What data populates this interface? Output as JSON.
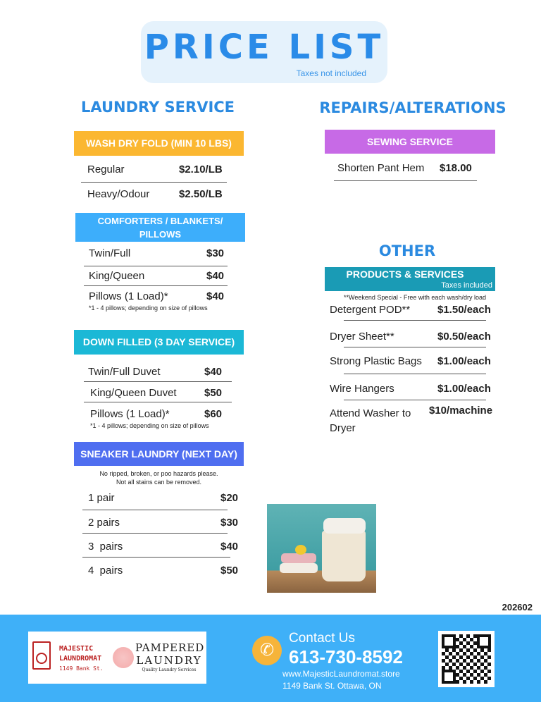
{
  "title": "PRICE LIST",
  "taxes_note": "Taxes not included",
  "laundry": {
    "heading": "LAUNDRY SERVICE",
    "wash": {
      "header": "WASH DRY FOLD (MIN 10 LBS)",
      "color": "#fbb731",
      "items": [
        {
          "name": "Regular",
          "price": "$2.10/LB"
        },
        {
          "name": "Heavy/Odour",
          "price": "$2.50/LB"
        }
      ]
    },
    "comforters": {
      "header": "COMFORTERS / BLANKETS/ PILLOWS",
      "color": "#3daefb",
      "items": [
        {
          "name": "Twin/Full",
          "price": "$30"
        },
        {
          "name": "King/Queen",
          "price": "$40"
        },
        {
          "name": "Pillows (1 Load)*",
          "price": "$40"
        }
      ],
      "note": "*1 - 4 pillows; depending on size of pillows"
    },
    "down": {
      "header": "DOWN FILLED (3 DAY SERVICE)",
      "color": "#1bb8d6",
      "items": [
        {
          "name": "Twin/Full Duvet",
          "price": "$40"
        },
        {
          "name": "King/Queen Duvet",
          "price": "$50"
        },
        {
          "name": "Pillows (1 Load)*",
          "price": "$60"
        }
      ],
      "note": "*1 - 4 pillows; depending on size of pillows"
    },
    "sneaker": {
      "header": "SNEAKER LAUNDRY (NEXT DAY)",
      "color": "#4f6ef0",
      "note1": "No ripped, broken, or poo hazards please.",
      "note2": "Not all stains can be removed.",
      "items": [
        {
          "name": "1 pair",
          "price": "$20"
        },
        {
          "name": "2 pairs",
          "price": "$30"
        },
        {
          "name": "3  pairs",
          "price": "$40"
        },
        {
          "name": "4  pairs",
          "price": "$50"
        }
      ]
    }
  },
  "repairs": {
    "heading": "REPAIRS/ALTERATIONS",
    "sewing": {
      "header": "SEWING SERVICE",
      "color": "#c76ae6",
      "items": [
        {
          "name": "Shorten Pant Hem",
          "price": "$18.00"
        }
      ]
    }
  },
  "other": {
    "heading": "OTHER",
    "products": {
      "header": "PRODUCTS & SERVICES",
      "taxes": "Taxes included",
      "color": "#1a9bb5",
      "note": "**Weekend Special - Free with each wash/dry load",
      "items": [
        {
          "name": "Detergent POD**",
          "price": "$1.50/each"
        },
        {
          "name": "Dryer Sheet**",
          "price": "$0.50/each"
        },
        {
          "name": "Strong Plastic Bags",
          "price": "$1.00/each"
        },
        {
          "name": "Wire Hangers",
          "price": "$1.00/each"
        },
        {
          "name": "Attend Washer to Dryer",
          "price": "$10/machine"
        }
      ]
    }
  },
  "code": "202602",
  "footer": {
    "color": "#3fb0f8",
    "logo1": {
      "line1": "MAJESTIC",
      "line2": "LAUNDROMAT",
      "line3": "1149 Bank St."
    },
    "logo2": {
      "line1": "PAMPERED",
      "line2": "LAUNDRY",
      "line3": "Quality Laundry Services"
    },
    "contact_label": "Contact Us",
    "phone": "613-730-8592",
    "website": "www.MajesticLaundromat.store",
    "address": "1149 Bank St. Ottawa, ON",
    "phone_icon": "phone-icon"
  }
}
